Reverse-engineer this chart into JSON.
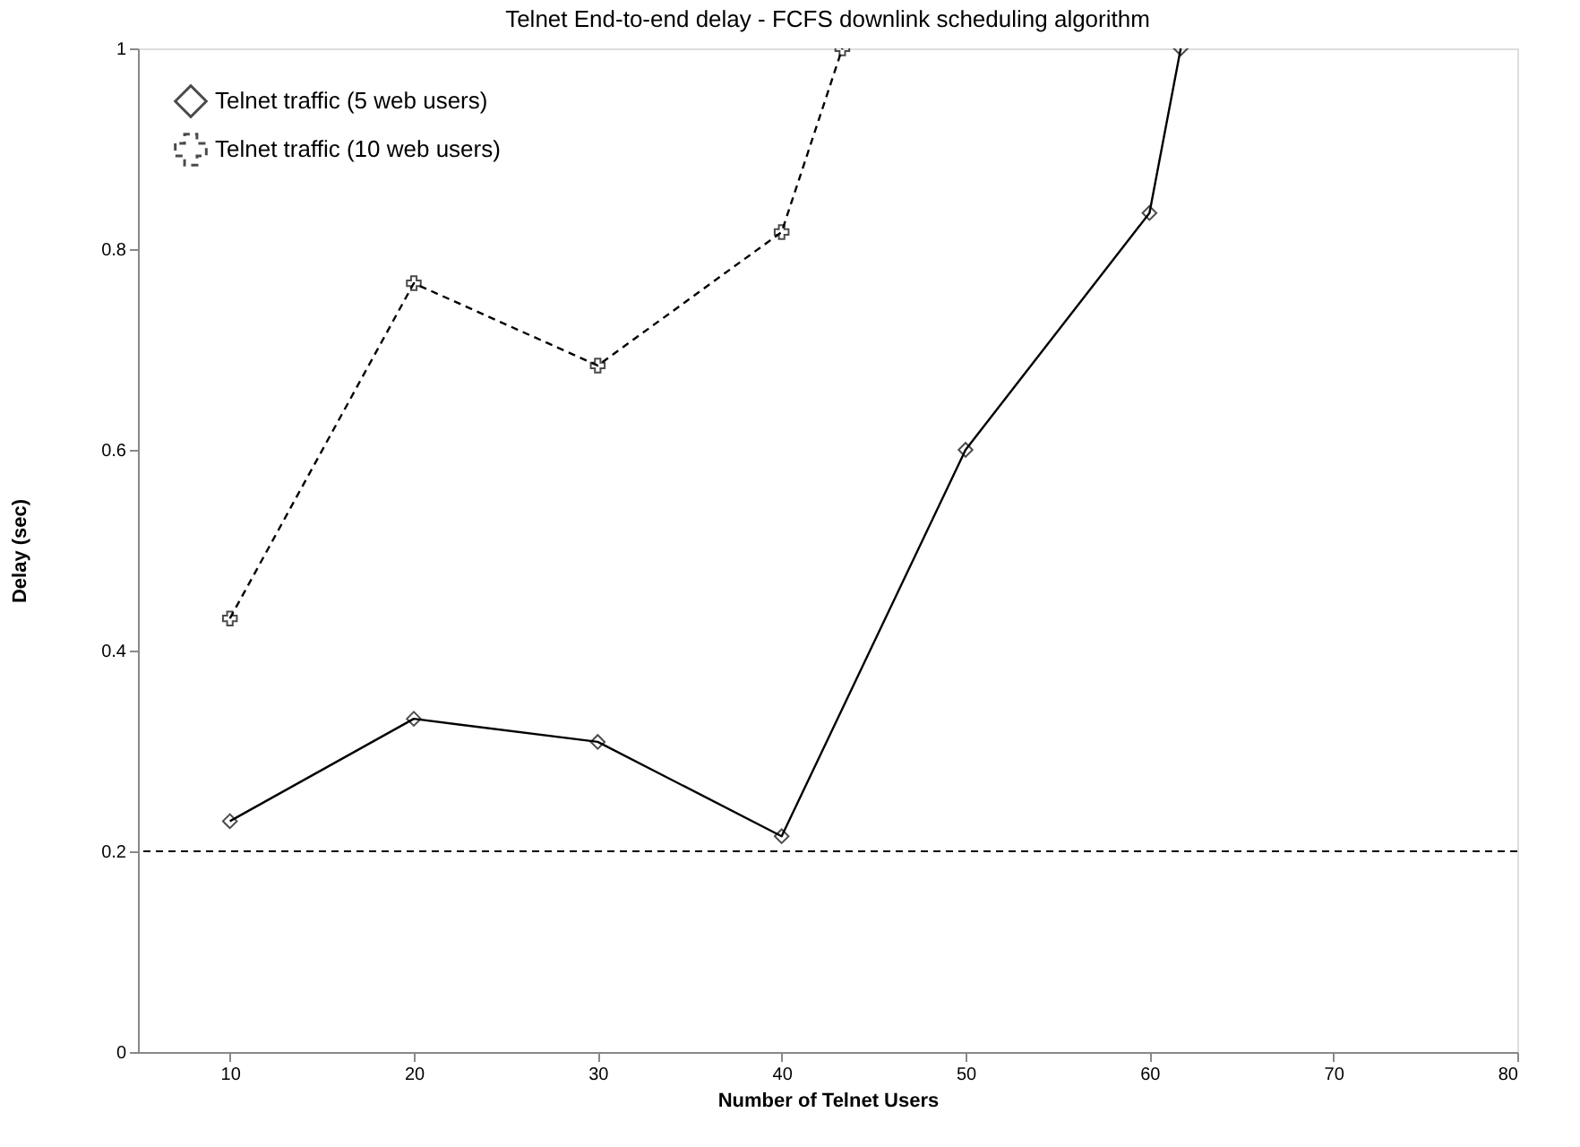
{
  "chart_data": {
    "type": "line",
    "title": "Telnet End-to-end delay - FCFS downlink scheduling algorithm",
    "xlabel": "Number of Telnet Users",
    "ylabel": "Delay (sec)",
    "xlim": [
      5,
      80
    ],
    "xticks": [
      10,
      20,
      30,
      40,
      50,
      60,
      70,
      80
    ],
    "ylim": [
      0,
      1
    ],
    "yticks": [
      0,
      0.2,
      0.4,
      0.6,
      0.8,
      1
    ],
    "grid": false,
    "legend": "top left",
    "series": [
      {
        "name": "Telnet traffic  (5 web users)",
        "color": "#000000",
        "marker": "diamond",
        "line_style": "solid",
        "x": [
          10,
          20,
          30,
          40,
          50,
          60,
          61.7
        ],
        "values": [
          0.23,
          0.332,
          0.309,
          0.215,
          0.6,
          0.836,
          1.0
        ]
      },
      {
        "name": "Telnet traffic (10 web users)",
        "color": "#000000",
        "marker": "cross",
        "line_style": "dashed",
        "x": [
          10,
          20,
          30,
          40,
          43.3
        ],
        "values": [
          0.432,
          0.766,
          0.684,
          0.817,
          1.0
        ]
      }
    ],
    "ref_lines": [
      {
        "axis": "y",
        "value": 0.2,
        "line_style": "dashed",
        "color": "#000000"
      }
    ]
  }
}
